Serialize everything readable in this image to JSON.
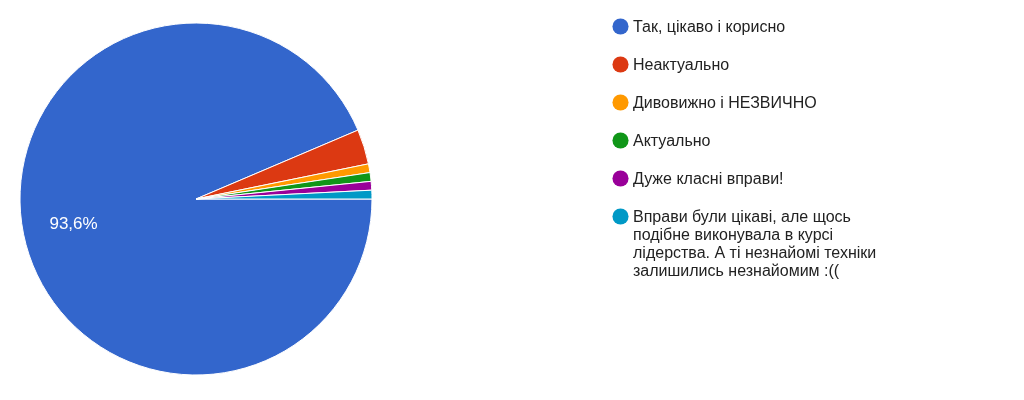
{
  "chart_data": {
    "type": "pie",
    "categories": [
      "Так, цікаво і корисно",
      "Неактуально",
      "Дивовижно і НЕЗВИЧНО",
      "Актуально",
      "Дуже класні вправи!",
      "Вправи були цікаві, але щось подібне виконувала в курсі лідерства. А ті незнайомі техніки залишились незнайомим :(("
    ],
    "values": [
      93.6,
      3.2,
      0.8,
      0.8,
      0.8,
      0.8
    ],
    "colors": [
      "#3366cc",
      "#dc3912",
      "#ff9900",
      "#109618",
      "#990099",
      "#0099c6"
    ],
    "value_labels": [
      "93,6%",
      null,
      null,
      null,
      null,
      null
    ],
    "legend": "right"
  }
}
